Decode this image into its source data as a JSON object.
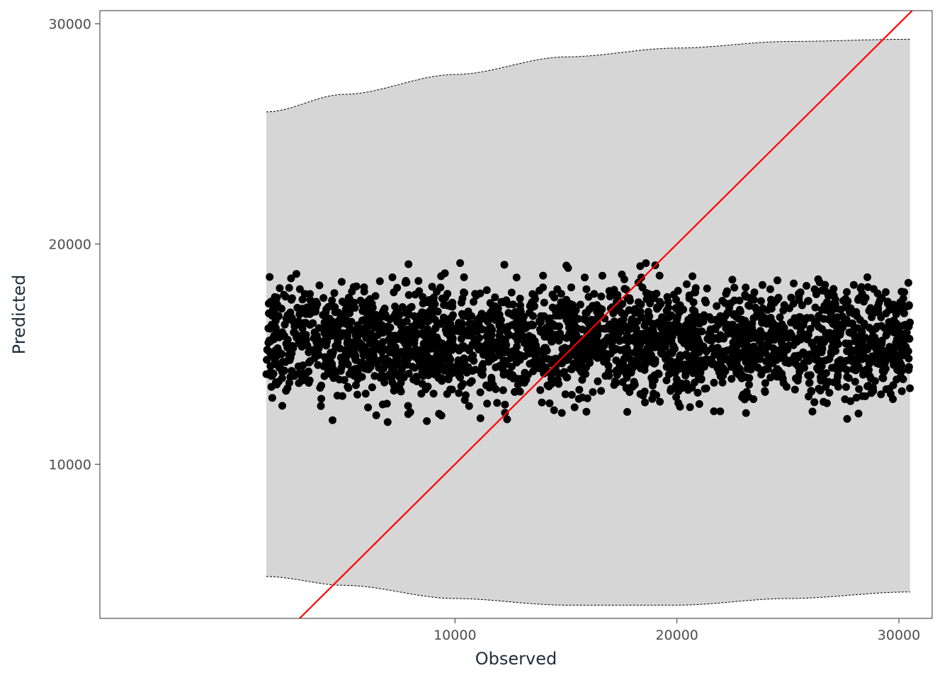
{
  "chart_data": {
    "type": "scatter",
    "title": "",
    "xlabel": "Observed",
    "ylabel": "Predicted",
    "xlim": [
      -6000,
      31500
    ],
    "ylim": [
      3000,
      30600
    ],
    "x_ticks": [
      10000,
      20000,
      30000
    ],
    "x_tick_labels": [
      "10000",
      "20000",
      "30000"
    ],
    "y_ticks": [
      10000,
      20000,
      30000
    ],
    "y_tick_labels": [
      "10000",
      "20000",
      "30000"
    ],
    "grid": false,
    "legend": "none",
    "colors": {
      "points": "#000000",
      "reference_line": "#ff0000",
      "band_fill": "#d6d6d6",
      "band_edge": "#000000",
      "panel_border": "#333333"
    },
    "reference_line": {
      "slope": 1,
      "intercept": 0
    },
    "prediction_band": {
      "x": [
        1500,
        5000,
        10000,
        15000,
        20000,
        25000,
        30500
      ],
      "upper": [
        26000,
        26800,
        27700,
        28500,
        28900,
        29200,
        29300
      ],
      "lower": [
        4900,
        4500,
        3900,
        3600,
        3600,
        3900,
        4200
      ]
    },
    "scatter": {
      "x_range": [
        1500,
        30500
      ],
      "y_center": 15600,
      "y_range": [
        11500,
        19200
      ],
      "point_count": 2600
    }
  }
}
